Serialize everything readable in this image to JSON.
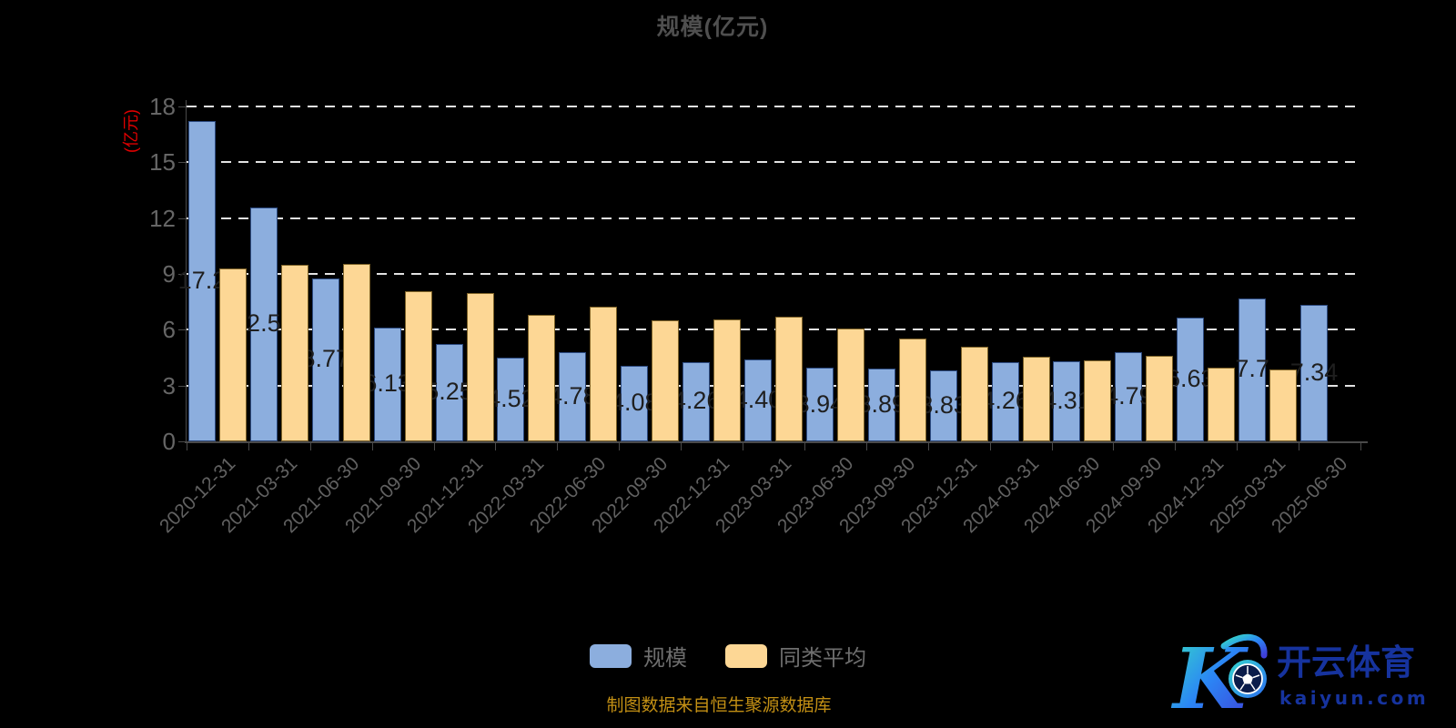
{
  "title": "规模(亿元)",
  "chart_data": {
    "type": "bar",
    "title": "规模(亿元)",
    "y_axis_name": "(亿元)",
    "ylabel_color": "#e00000",
    "ylim": [
      0,
      18
    ],
    "y_ticks": [
      0,
      3,
      6,
      9,
      12,
      15,
      18
    ],
    "grid": "horizontal-dashed",
    "legend_position": "bottom",
    "categories": [
      "2020-12-31",
      "2021-03-31",
      "2021-06-30",
      "2021-09-30",
      "2021-12-31",
      "2022-03-31",
      "2022-06-30",
      "2022-09-30",
      "2022-12-31",
      "2023-03-31",
      "2023-06-30",
      "2023-09-30",
      "2023-12-31",
      "2024-03-31",
      "2024-06-30",
      "2024-09-30",
      "2024-12-31",
      "2025-03-31",
      "2025-06-30"
    ],
    "series": [
      {
        "name": "规模",
        "color": "#8caede",
        "border_color": "#2c4a80",
        "label_color": "#1f1f1f",
        "values": [
          17.2,
          12.59,
          8.77,
          6.13,
          5.25,
          4.52,
          4.78,
          4.08,
          4.26,
          4.4,
          3.94,
          3.89,
          3.83,
          4.26,
          4.31,
          4.79,
          6.63,
          7.7,
          7.34
        ],
        "labels": [
          "17.2",
          "12.59",
          "8.77",
          "6.13",
          "5.25",
          "4.52",
          "4.78",
          "4.08",
          "4.26",
          "4.40",
          "3.94",
          "3.89",
          "3.83",
          "4.26",
          "4.31",
          "4.79",
          "6.63",
          "7.7",
          "7.34"
        ]
      },
      {
        "name": "同类平均",
        "color": "#fdd795",
        "border_color": "#7d6228",
        "values": [
          9.3,
          9.5,
          9.55,
          8.05,
          7.95,
          6.8,
          7.25,
          6.5,
          6.55,
          6.7,
          6.05,
          5.55,
          5.1,
          4.55,
          4.35,
          4.6,
          3.95,
          3.85,
          null
        ],
        "labels": []
      }
    ]
  },
  "legend": {
    "items": [
      {
        "label": "规模",
        "color": "#8caede"
      },
      {
        "label": "同类平均",
        "color": "#fdd795"
      }
    ]
  },
  "footer": {
    "source_note": "制图数据来自恒生聚源数据库",
    "note_color": "#c28f14"
  },
  "watermark": {
    "monogram": "K",
    "soccer_ball_icon": "soccer-ball-icon",
    "brand_cn": "开云体育",
    "brand_domain": "kaiyun.com",
    "gradient": [
      "#37dfc4",
      "#2b86f5",
      "#3f3fd8"
    ],
    "text_color": "#16339e"
  },
  "colors": {
    "background": "#000000",
    "title_text": "#4f4f4f",
    "axis_line": "#4a4a4a",
    "tick_text": "#666666",
    "gridline": "#e2e2e2"
  }
}
